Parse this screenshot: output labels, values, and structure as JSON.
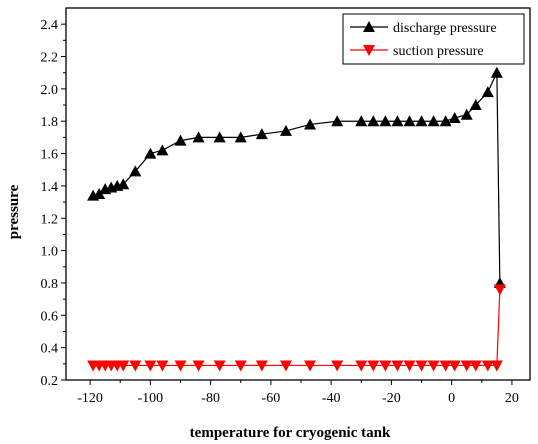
{
  "chart_data": {
    "type": "line",
    "title": "",
    "xlabel": "temperature for cryogenic tank",
    "ylabel": "pressure",
    "xlim": [
      -128,
      26
    ],
    "ylim": [
      0.2,
      2.5
    ],
    "xticks": [
      -120,
      -100,
      -80,
      -60,
      -40,
      -20,
      0,
      20
    ],
    "yticks": [
      0.2,
      0.4,
      0.6,
      0.8,
      1.0,
      1.2,
      1.4,
      1.6,
      1.8,
      2.0,
      2.2,
      2.4
    ],
    "xtick_labels": [
      "-120",
      "-100",
      "-80",
      "-60",
      "-40",
      "-20",
      "0",
      "20"
    ],
    "ytick_labels": [
      "0.2",
      "0.4",
      "0.6",
      "0.8",
      "1.0",
      "1.2",
      "1.4",
      "1.6",
      "1.8",
      "2.0",
      "2.2",
      "2.4"
    ],
    "grid": false,
    "legend_position": "top-right",
    "series": [
      {
        "name": "discharge pressure",
        "color": "#000000",
        "marker": "triangle-up",
        "x": [
          -119,
          -117,
          -115,
          -113,
          -111,
          -109,
          -105,
          -100,
          -96,
          -90,
          -84,
          -77,
          -70,
          -63,
          -55,
          -47,
          -38,
          -30,
          -26,
          -22,
          -18,
          -14,
          -10,
          -6,
          -2,
          1,
          5,
          8,
          12,
          15,
          16
        ],
        "y": [
          1.34,
          1.35,
          1.38,
          1.39,
          1.4,
          1.41,
          1.49,
          1.6,
          1.62,
          1.68,
          1.7,
          1.7,
          1.7,
          1.72,
          1.74,
          1.78,
          1.8,
          1.8,
          1.8,
          1.8,
          1.8,
          1.8,
          1.8,
          1.8,
          1.8,
          1.82,
          1.84,
          1.9,
          1.98,
          2.1,
          0.8
        ]
      },
      {
        "name": "suction pressure",
        "color": "#ff0000",
        "marker": "triangle-down",
        "x": [
          -119,
          -117,
          -115,
          -113,
          -111,
          -109,
          -105,
          -100,
          -96,
          -90,
          -84,
          -77,
          -70,
          -63,
          -55,
          -47,
          -38,
          -30,
          -26,
          -22,
          -18,
          -14,
          -10,
          -6,
          -2,
          1,
          5,
          8,
          12,
          15,
          16
        ],
        "y": [
          0.29,
          0.29,
          0.29,
          0.29,
          0.29,
          0.29,
          0.29,
          0.29,
          0.29,
          0.29,
          0.29,
          0.29,
          0.29,
          0.29,
          0.29,
          0.29,
          0.29,
          0.29,
          0.29,
          0.29,
          0.29,
          0.29,
          0.29,
          0.29,
          0.29,
          0.29,
          0.29,
          0.29,
          0.29,
          0.29,
          0.76
        ]
      }
    ]
  }
}
